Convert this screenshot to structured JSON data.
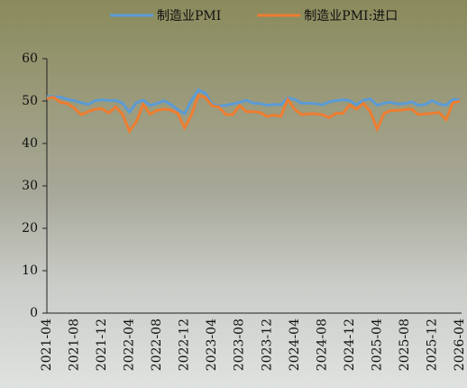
{
  "chart_data": {
    "type": "line",
    "categories": [
      "2021-04",
      null,
      null,
      null,
      "2021-08",
      null,
      null,
      null,
      "2021-12",
      null,
      null,
      null,
      "2022-04",
      null,
      null,
      null,
      "2022-08",
      null,
      null,
      null,
      "2022-12",
      null,
      null,
      null,
      "2023-04",
      null,
      null,
      null,
      "2023-08",
      null,
      null,
      null,
      "2023-12",
      null,
      null,
      null,
      "2024-04",
      null,
      null,
      null,
      "2024-08",
      null,
      null,
      null,
      "2024-12",
      null,
      null,
      null,
      "2025-04",
      null,
      null,
      null,
      "2025-08",
      null,
      null,
      null,
      "2025-12",
      null,
      null,
      null,
      "2026-04"
    ],
    "series": [
      {
        "name": "制造业PMI",
        "color": "#5b9bd5",
        "values": [
          51.1,
          51.0,
          50.9,
          50.4,
          50.1,
          49.6,
          49.2,
          50.1,
          50.3,
          50.1,
          50.2,
          49.5,
          47.4,
          49.6,
          50.2,
          49.0,
          49.4,
          50.1,
          49.2,
          48.0,
          47.0,
          50.1,
          52.6,
          51.9,
          49.2,
          48.8,
          49.0,
          49.3,
          49.7,
          50.2,
          49.5,
          49.4,
          49.0,
          49.2,
          49.1,
          50.8,
          50.4,
          49.5,
          49.5,
          49.4,
          49.1,
          49.8,
          50.1,
          50.3,
          50.1,
          49.1,
          50.2,
          50.5,
          49.0,
          49.5,
          49.7,
          49.3,
          49.4,
          49.8,
          49.0,
          49.2,
          50.1,
          49.3,
          49.0,
          50.4,
          50.3
        ]
      },
      {
        "name": "制造业PMI:进口",
        "color": "#ed7d31",
        "values": [
          50.6,
          50.9,
          49.7,
          49.4,
          48.3,
          46.8,
          47.5,
          48.1,
          48.2,
          47.2,
          48.6,
          46.9,
          42.9,
          45.1,
          49.2,
          46.9,
          47.8,
          48.1,
          47.9,
          47.1,
          43.7,
          46.7,
          51.3,
          50.9,
          48.9,
          48.6,
          46.8,
          46.8,
          48.9,
          47.5,
          47.5,
          47.3,
          46.4,
          46.7,
          46.4,
          50.4,
          48.1,
          46.8,
          47.0,
          47.0,
          46.8,
          46.1,
          47.1,
          47.1,
          49.1,
          48.1,
          49.5,
          47.5,
          43.4,
          47.1,
          47.8,
          47.8,
          48.0,
          48.1,
          46.8,
          47.0,
          47.1,
          47.3,
          45.6,
          49.6,
          50.0
        ]
      }
    ],
    "ylim": [
      0,
      60
    ],
    "yticks": [
      0,
      10,
      20,
      30,
      40,
      50,
      60
    ],
    "legend": "top"
  }
}
